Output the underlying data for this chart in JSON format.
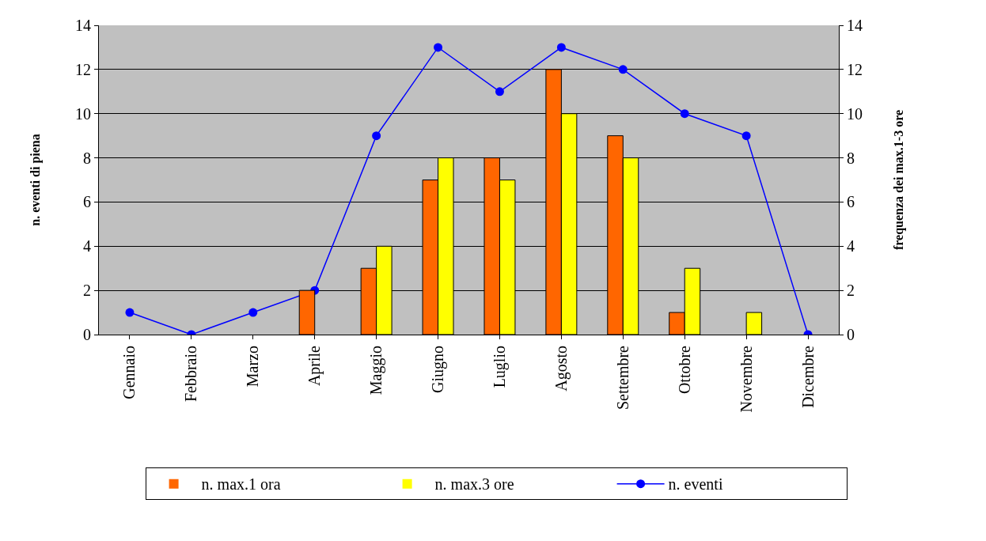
{
  "chart_data": {
    "type": "bar",
    "ylabel": "n. eventi di piena",
    "y2label": "frequenza dei max.1-3 ore",
    "categories": [
      "Gennaio",
      "Febbraio",
      "Marzo",
      "Aprile",
      "Maggio",
      "Giugno",
      "Luglio",
      "Agosto",
      "Settembre",
      "Ottobre",
      "Novembre",
      "Dicembre"
    ],
    "series": [
      {
        "name": "n. max.1 ora",
        "color": "#ff6600",
        "axis": "y2",
        "values": [
          0,
          0,
          0,
          2,
          3,
          7,
          8,
          12,
          9,
          1,
          0,
          0
        ]
      },
      {
        "name": "n. max.3 ore",
        "color": "#ffff00",
        "axis": "y2",
        "values": [
          0,
          0,
          0,
          0,
          4,
          8,
          7,
          10,
          8,
          3,
          1,
          0
        ]
      },
      {
        "name": "n. eventi",
        "type": "line",
        "color": "#0000ff",
        "marker": "circle",
        "values": [
          1,
          0,
          1,
          2,
          9,
          13,
          11,
          13,
          12,
          10,
          9,
          0
        ]
      }
    ],
    "ylim": [
      0,
      14
    ],
    "yticks": [
      0,
      2,
      4,
      6,
      8,
      10,
      12,
      14
    ],
    "y2lim": [
      0,
      14
    ],
    "y2ticks": [
      0,
      2,
      4,
      6,
      8,
      10,
      12,
      14
    ],
    "grid": "y",
    "legend": "bottom"
  }
}
